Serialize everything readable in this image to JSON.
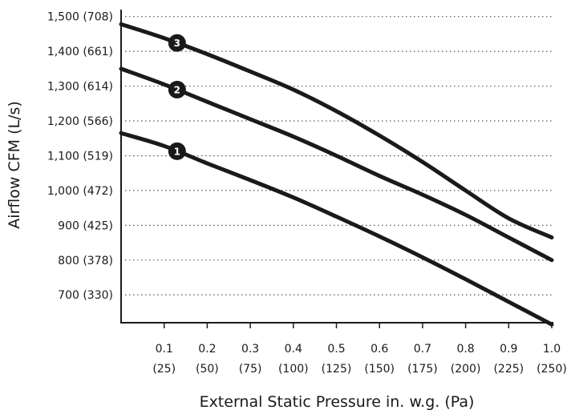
{
  "chart_data": {
    "type": "line",
    "xlabel": "External Static Pressure in. w.g. (Pa)",
    "ylabel": "Airflow CFM (L/s)",
    "xlim": [
      0.0,
      1.0
    ],
    "ylim": [
      620,
      1520
    ],
    "x_ticks": [
      {
        "value": 0.1,
        "line1": "0.1",
        "line2": "(25)"
      },
      {
        "value": 0.2,
        "line1": "0.2",
        "line2": "(50)"
      },
      {
        "value": 0.3,
        "line1": "0.3",
        "line2": "(75)"
      },
      {
        "value": 0.4,
        "line1": "0.4",
        "line2": "(100)"
      },
      {
        "value": 0.5,
        "line1": "0.5",
        "line2": "(125)"
      },
      {
        "value": 0.6,
        "line1": "0.6",
        "line2": "(150)"
      },
      {
        "value": 0.7,
        "line1": "0.7",
        "line2": "(175)"
      },
      {
        "value": 0.8,
        "line1": "0.8",
        "line2": "(200)"
      },
      {
        "value": 0.9,
        "line1": "0.9",
        "line2": "(225)"
      },
      {
        "value": 1.0,
        "line1": "1.0",
        "line2": "(250)"
      }
    ],
    "y_ticks": [
      {
        "value": 700,
        "label": "700 (330)"
      },
      {
        "value": 800,
        "label": "800 (378)"
      },
      {
        "value": 900,
        "label": "900 (425)"
      },
      {
        "value": 1000,
        "label": "1,000 (472)"
      },
      {
        "value": 1100,
        "label": "1,100 (519)"
      },
      {
        "value": 1200,
        "label": "1,200 (566)"
      },
      {
        "value": 1300,
        "label": "1,300 (614)"
      },
      {
        "value": 1400,
        "label": "1,400 (661)"
      },
      {
        "value": 1500,
        "label": "1,500 (708)"
      }
    ],
    "grid": "horizontal dotted",
    "series": [
      {
        "marker": "1",
        "marker_x": 0.13,
        "x": [
          0.0,
          0.1,
          0.2,
          0.3,
          0.4,
          0.5,
          0.6,
          0.7,
          0.8,
          0.9,
          1.0
        ],
        "values": [
          1165,
          1128,
          1078,
          1030,
          980,
          925,
          868,
          808,
          745,
          680,
          615
        ]
      },
      {
        "marker": "2",
        "marker_x": 0.13,
        "x": [
          0.0,
          0.1,
          0.2,
          0.3,
          0.4,
          0.5,
          0.6,
          0.7,
          0.8,
          0.9,
          1.0
        ],
        "values": [
          1350,
          1305,
          1255,
          1205,
          1155,
          1100,
          1042,
          988,
          930,
          865,
          800
        ]
      },
      {
        "marker": "3",
        "marker_x": 0.13,
        "x": [
          0.0,
          0.1,
          0.2,
          0.3,
          0.4,
          0.5,
          0.6,
          0.7,
          0.8,
          0.9,
          1.0
        ],
        "values": [
          1478,
          1438,
          1392,
          1342,
          1290,
          1228,
          1158,
          1082,
          1000,
          920,
          865
        ]
      }
    ]
  }
}
